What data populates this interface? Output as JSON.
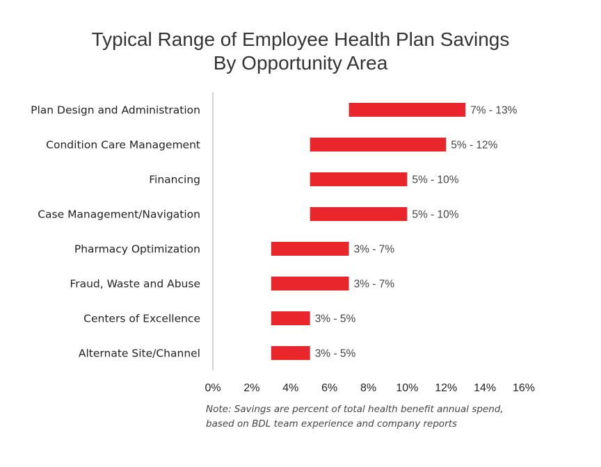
{
  "chart_data": {
    "type": "bar",
    "orientation": "horizontal-range",
    "title_lines": [
      "Typical Range of Employee Health Plan Savings",
      "By Opportunity Area"
    ],
    "categories": [
      "Plan Design and Administration",
      "Condition Care Management",
      "Financing",
      "Case Management/Navigation",
      "Pharmacy Optimization",
      "Fraud, Waste and Abuse",
      "Centers of Excellence",
      "Alternate Site/Channel"
    ],
    "ranges": [
      [
        7,
        13
      ],
      [
        5,
        12
      ],
      [
        5,
        10
      ],
      [
        5,
        10
      ],
      [
        3,
        7
      ],
      [
        3,
        7
      ],
      [
        3,
        5
      ],
      [
        3,
        5
      ]
    ],
    "data_labels": [
      "7% - 13%",
      "5% - 12%",
      "5% - 10%",
      "5% - 10%",
      "3% - 7%",
      "3% - 7%",
      "3% - 5%",
      "3% - 5%"
    ],
    "xlim": [
      0,
      16
    ],
    "xticks": [
      0,
      2,
      4,
      6,
      8,
      10,
      12,
      14,
      16
    ],
    "xtick_labels": [
      "0%",
      "2%",
      "4%",
      "6%",
      "8%",
      "10%",
      "12%",
      "14%",
      "16%"
    ],
    "xlabel": "",
    "ylabel": "",
    "grid": false,
    "bar_color": "#e8262b",
    "note_lines": [
      "Note:  Savings are percent of total health benefit annual spend,",
      "based on BDL team experience and company reports"
    ]
  }
}
